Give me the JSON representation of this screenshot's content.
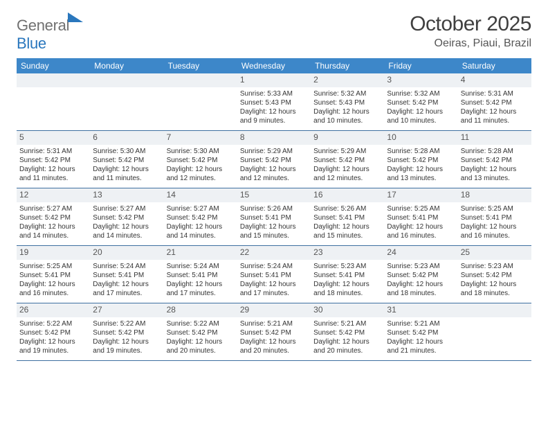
{
  "brand": {
    "part1": "General",
    "part2": "Blue"
  },
  "title": "October 2025",
  "location": "Oeiras, Piaui, Brazil",
  "colors": {
    "header_bg": "#3d87c9",
    "header_text": "#ffffff",
    "daynum_bg": "#eef1f4",
    "row_border": "#3d6fa0",
    "brand_gray": "#707070",
    "brand_blue": "#2a77bd"
  },
  "daysOfWeek": [
    "Sunday",
    "Monday",
    "Tuesday",
    "Wednesday",
    "Thursday",
    "Friday",
    "Saturday"
  ],
  "weeks": [
    [
      {
        "n": "",
        "lines": []
      },
      {
        "n": "",
        "lines": []
      },
      {
        "n": "",
        "lines": []
      },
      {
        "n": "1",
        "lines": [
          "Sunrise: 5:33 AM",
          "Sunset: 5:43 PM",
          "Daylight: 12 hours",
          "and 9 minutes."
        ]
      },
      {
        "n": "2",
        "lines": [
          "Sunrise: 5:32 AM",
          "Sunset: 5:43 PM",
          "Daylight: 12 hours",
          "and 10 minutes."
        ]
      },
      {
        "n": "3",
        "lines": [
          "Sunrise: 5:32 AM",
          "Sunset: 5:42 PM",
          "Daylight: 12 hours",
          "and 10 minutes."
        ]
      },
      {
        "n": "4",
        "lines": [
          "Sunrise: 5:31 AM",
          "Sunset: 5:42 PM",
          "Daylight: 12 hours",
          "and 11 minutes."
        ]
      }
    ],
    [
      {
        "n": "5",
        "lines": [
          "Sunrise: 5:31 AM",
          "Sunset: 5:42 PM",
          "Daylight: 12 hours",
          "and 11 minutes."
        ]
      },
      {
        "n": "6",
        "lines": [
          "Sunrise: 5:30 AM",
          "Sunset: 5:42 PM",
          "Daylight: 12 hours",
          "and 11 minutes."
        ]
      },
      {
        "n": "7",
        "lines": [
          "Sunrise: 5:30 AM",
          "Sunset: 5:42 PM",
          "Daylight: 12 hours",
          "and 12 minutes."
        ]
      },
      {
        "n": "8",
        "lines": [
          "Sunrise: 5:29 AM",
          "Sunset: 5:42 PM",
          "Daylight: 12 hours",
          "and 12 minutes."
        ]
      },
      {
        "n": "9",
        "lines": [
          "Sunrise: 5:29 AM",
          "Sunset: 5:42 PM",
          "Daylight: 12 hours",
          "and 12 minutes."
        ]
      },
      {
        "n": "10",
        "lines": [
          "Sunrise: 5:28 AM",
          "Sunset: 5:42 PM",
          "Daylight: 12 hours",
          "and 13 minutes."
        ]
      },
      {
        "n": "11",
        "lines": [
          "Sunrise: 5:28 AM",
          "Sunset: 5:42 PM",
          "Daylight: 12 hours",
          "and 13 minutes."
        ]
      }
    ],
    [
      {
        "n": "12",
        "lines": [
          "Sunrise: 5:27 AM",
          "Sunset: 5:42 PM",
          "Daylight: 12 hours",
          "and 14 minutes."
        ]
      },
      {
        "n": "13",
        "lines": [
          "Sunrise: 5:27 AM",
          "Sunset: 5:42 PM",
          "Daylight: 12 hours",
          "and 14 minutes."
        ]
      },
      {
        "n": "14",
        "lines": [
          "Sunrise: 5:27 AM",
          "Sunset: 5:42 PM",
          "Daylight: 12 hours",
          "and 14 minutes."
        ]
      },
      {
        "n": "15",
        "lines": [
          "Sunrise: 5:26 AM",
          "Sunset: 5:41 PM",
          "Daylight: 12 hours",
          "and 15 minutes."
        ]
      },
      {
        "n": "16",
        "lines": [
          "Sunrise: 5:26 AM",
          "Sunset: 5:41 PM",
          "Daylight: 12 hours",
          "and 15 minutes."
        ]
      },
      {
        "n": "17",
        "lines": [
          "Sunrise: 5:25 AM",
          "Sunset: 5:41 PM",
          "Daylight: 12 hours",
          "and 16 minutes."
        ]
      },
      {
        "n": "18",
        "lines": [
          "Sunrise: 5:25 AM",
          "Sunset: 5:41 PM",
          "Daylight: 12 hours",
          "and 16 minutes."
        ]
      }
    ],
    [
      {
        "n": "19",
        "lines": [
          "Sunrise: 5:25 AM",
          "Sunset: 5:41 PM",
          "Daylight: 12 hours",
          "and 16 minutes."
        ]
      },
      {
        "n": "20",
        "lines": [
          "Sunrise: 5:24 AM",
          "Sunset: 5:41 PM",
          "Daylight: 12 hours",
          "and 17 minutes."
        ]
      },
      {
        "n": "21",
        "lines": [
          "Sunrise: 5:24 AM",
          "Sunset: 5:41 PM",
          "Daylight: 12 hours",
          "and 17 minutes."
        ]
      },
      {
        "n": "22",
        "lines": [
          "Sunrise: 5:24 AM",
          "Sunset: 5:41 PM",
          "Daylight: 12 hours",
          "and 17 minutes."
        ]
      },
      {
        "n": "23",
        "lines": [
          "Sunrise: 5:23 AM",
          "Sunset: 5:41 PM",
          "Daylight: 12 hours",
          "and 18 minutes."
        ]
      },
      {
        "n": "24",
        "lines": [
          "Sunrise: 5:23 AM",
          "Sunset: 5:42 PM",
          "Daylight: 12 hours",
          "and 18 minutes."
        ]
      },
      {
        "n": "25",
        "lines": [
          "Sunrise: 5:23 AM",
          "Sunset: 5:42 PM",
          "Daylight: 12 hours",
          "and 18 minutes."
        ]
      }
    ],
    [
      {
        "n": "26",
        "lines": [
          "Sunrise: 5:22 AM",
          "Sunset: 5:42 PM",
          "Daylight: 12 hours",
          "and 19 minutes."
        ]
      },
      {
        "n": "27",
        "lines": [
          "Sunrise: 5:22 AM",
          "Sunset: 5:42 PM",
          "Daylight: 12 hours",
          "and 19 minutes."
        ]
      },
      {
        "n": "28",
        "lines": [
          "Sunrise: 5:22 AM",
          "Sunset: 5:42 PM",
          "Daylight: 12 hours",
          "and 20 minutes."
        ]
      },
      {
        "n": "29",
        "lines": [
          "Sunrise: 5:21 AM",
          "Sunset: 5:42 PM",
          "Daylight: 12 hours",
          "and 20 minutes."
        ]
      },
      {
        "n": "30",
        "lines": [
          "Sunrise: 5:21 AM",
          "Sunset: 5:42 PM",
          "Daylight: 12 hours",
          "and 20 minutes."
        ]
      },
      {
        "n": "31",
        "lines": [
          "Sunrise: 5:21 AM",
          "Sunset: 5:42 PM",
          "Daylight: 12 hours",
          "and 21 minutes."
        ]
      },
      {
        "n": "",
        "lines": []
      }
    ]
  ]
}
